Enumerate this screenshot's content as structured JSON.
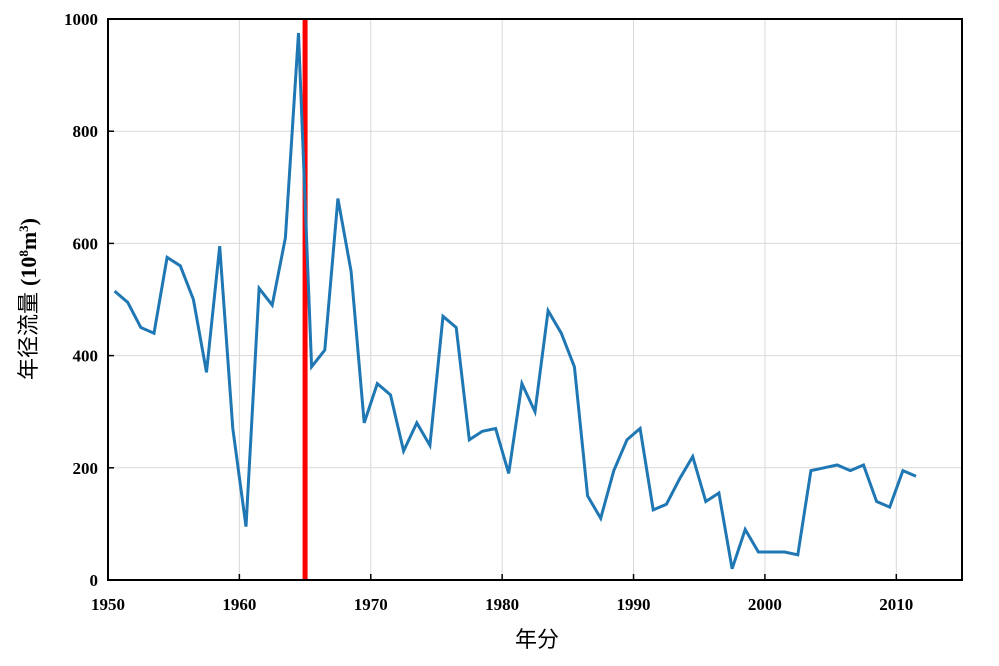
{
  "chart_data": {
    "type": "line",
    "xlabel": "年分",
    "ylabel": {
      "main": "年径流量",
      "unit_prefix": "(10",
      "exp1": "8",
      "unit_mid": "m",
      "exp2": "3",
      "unit_suffix": ")"
    },
    "xlim": [
      1950,
      2015
    ],
    "ylim": [
      0,
      1000
    ],
    "x_ticks": [
      1950,
      1960,
      1970,
      1980,
      1990,
      2000,
      2010
    ],
    "y_ticks": [
      0,
      200,
      400,
      600,
      800,
      1000
    ],
    "grid": true,
    "vertical_marker": {
      "x": 1965,
      "color": "#ff0000"
    },
    "series": [
      {
        "color": "#1f77b4",
        "x": [
          1950.5,
          1951.5,
          1952.5,
          1953.5,
          1954.5,
          1955.5,
          1956.5,
          1957.5,
          1958.5,
          1959.5,
          1960.5,
          1961.5,
          1962.5,
          1963.5,
          1964.5,
          1965.5,
          1966.5,
          1967.5,
          1968.5,
          1969.5,
          1970.5,
          1971.5,
          1972.5,
          1973.5,
          1974.5,
          1975.5,
          1976.5,
          1977.5,
          1978.5,
          1979.5,
          1980.5,
          1981.5,
          1982.5,
          1983.5,
          1984.5,
          1985.5,
          1986.5,
          1987.5,
          1988.5,
          1989.5,
          1990.5,
          1991.5,
          1992.5,
          1993.5,
          1994.5,
          1995.5,
          1996.5,
          1997.5,
          1998.5,
          1999.5,
          2000.5,
          2001.5,
          2002.5,
          2003.5,
          2004.5,
          2005.5,
          2006.5,
          2007.5,
          2008.5,
          2009.5,
          2010.5,
          2011.5
        ],
        "values": [
          515,
          495,
          450,
          440,
          575,
          560,
          500,
          370,
          595,
          270,
          95,
          520,
          490,
          610,
          975,
          380,
          410,
          680,
          550,
          280,
          350,
          330,
          230,
          280,
          240,
          470,
          450,
          250,
          265,
          270,
          190,
          350,
          300,
          480,
          440,
          380,
          150,
          110,
          195,
          250,
          270,
          125,
          135,
          180,
          220,
          140,
          155,
          20,
          90,
          50,
          50,
          50,
          45,
          195,
          200,
          205,
          195,
          205,
          140,
          130,
          195,
          185
        ]
      }
    ]
  }
}
